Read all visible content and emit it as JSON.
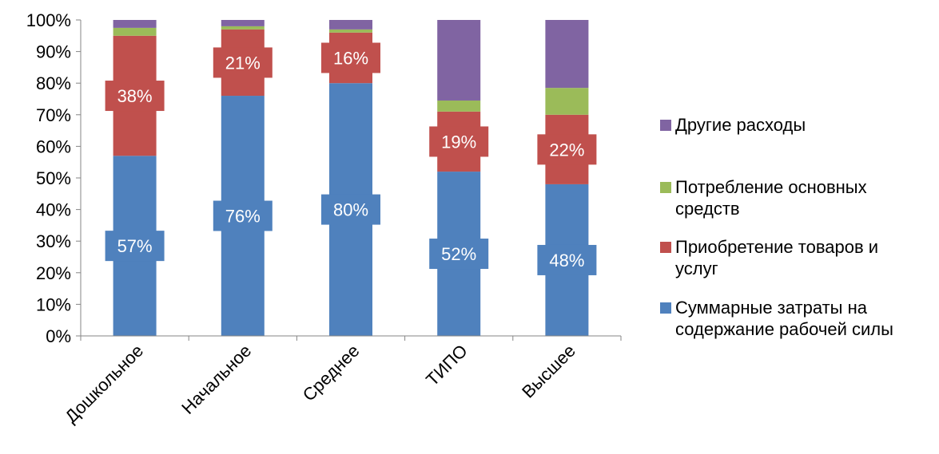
{
  "chart_data": {
    "type": "bar",
    "stacked": true,
    "percent_stacked": true,
    "categories": [
      "Дошкольное",
      "Начальное",
      "Среднее",
      "ТИПО",
      "Высшее"
    ],
    "series": [
      {
        "name": "Суммарные затраты на содержание рабочей силы",
        "legend_lines": [
          "Суммарные затраты на",
          "содержание рабочей силы"
        ],
        "color": "#4F81BD",
        "values": [
          57,
          76,
          80,
          52,
          48
        ],
        "data_labels": [
          "57%",
          "76%",
          "80%",
          "52%",
          "48%"
        ]
      },
      {
        "name": "Приобретение товаров и услуг",
        "legend_lines": [
          "Приобретение товаров и",
          "услуг"
        ],
        "color": "#C0504D",
        "values": [
          38,
          21,
          16,
          19,
          22
        ],
        "data_labels": [
          "38%",
          "21%",
          "16%",
          "19%",
          "22%"
        ]
      },
      {
        "name": "Потребление основных средств",
        "legend_lines": [
          "Потребление основных",
          "средств"
        ],
        "color": "#9BBB59",
        "values": [
          2.5,
          1,
          1,
          3.5,
          8.5
        ],
        "data_labels": []
      },
      {
        "name": "Другие расходы",
        "legend_lines": [
          "Другие расходы"
        ],
        "color": "#8064A2",
        "values": [
          2.5,
          2,
          3,
          25.5,
          21.5
        ],
        "data_labels": []
      }
    ],
    "ylim": [
      0,
      100
    ],
    "yticks": [
      0,
      10,
      20,
      30,
      40,
      50,
      60,
      70,
      80,
      90,
      100
    ],
    "ytick_labels": [
      "0%",
      "10%",
      "20%",
      "30%",
      "40%",
      "50%",
      "60%",
      "70%",
      "80%",
      "90%",
      "100%"
    ],
    "xtick_rotation": -45,
    "grid": false,
    "legend_position": "right",
    "title": "",
    "xlabel": "",
    "ylabel": ""
  }
}
